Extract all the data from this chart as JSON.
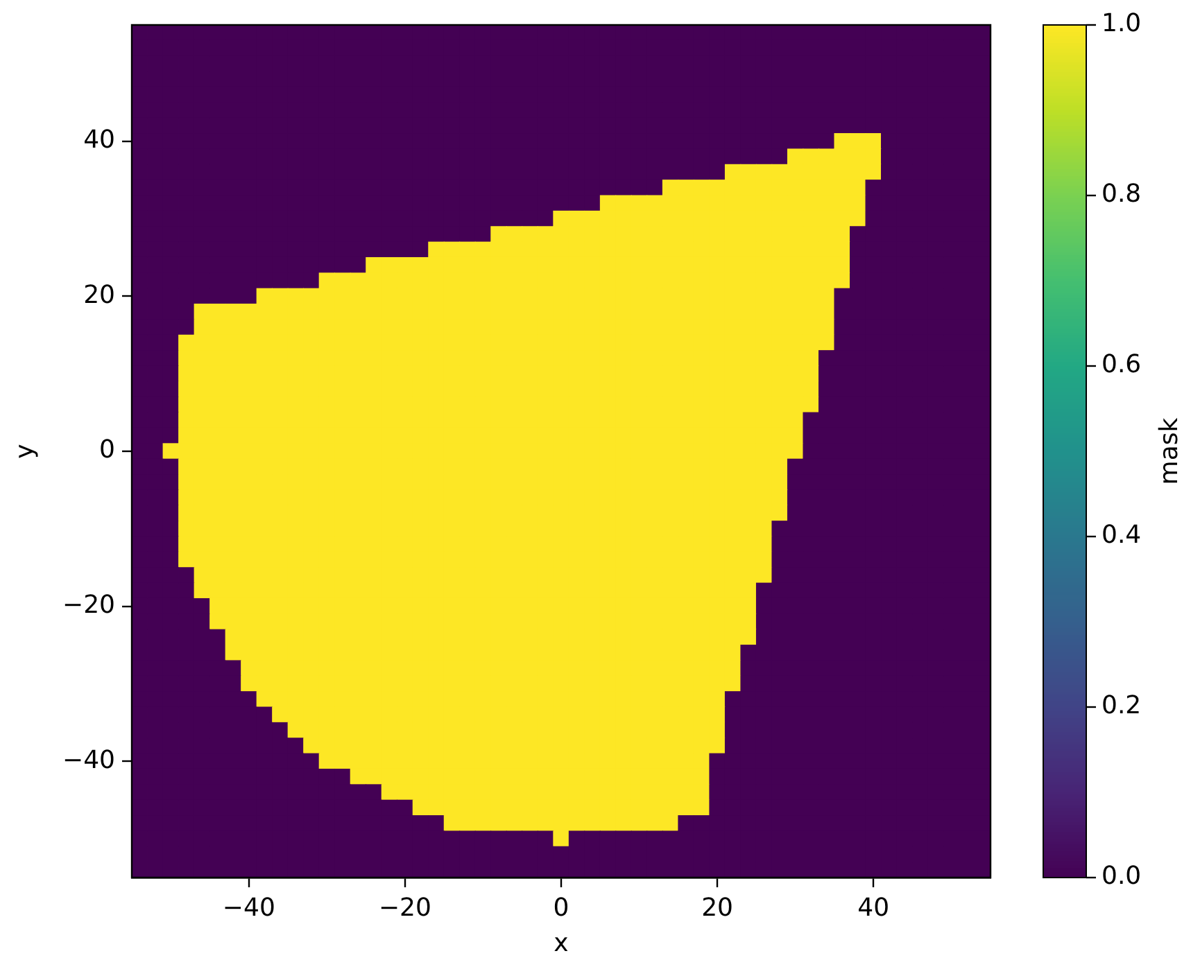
{
  "chart_data": {
    "type": "heatmap",
    "xlabel": "x",
    "ylabel": "y",
    "clabel": "mask",
    "x": [
      -54,
      -52,
      -50,
      -48,
      -46,
      -44,
      -42,
      -40,
      -38,
      -36,
      -34,
      -32,
      -30,
      -28,
      -26,
      -24,
      -22,
      -20,
      -18,
      -16,
      -14,
      -12,
      -10,
      -8,
      -6,
      -4,
      -2,
      0,
      2,
      4,
      6,
      8,
      10,
      12,
      14,
      16,
      18,
      20,
      22,
      24,
      26,
      28,
      30,
      32,
      34,
      36,
      38,
      40,
      42,
      44,
      46,
      48,
      50,
      52,
      54
    ],
    "cells": [
      [
        0,
        0,
        0,
        0,
        0,
        0,
        0,
        0,
        0,
        0,
        0,
        0,
        0,
        0,
        0,
        0,
        0,
        0,
        0,
        0,
        0,
        0,
        0,
        0,
        0,
        0,
        0,
        0,
        0,
        0,
        0,
        0,
        0,
        0,
        0,
        0,
        0,
        0,
        0,
        0,
        0,
        0,
        0,
        0,
        0,
        0,
        0,
        0,
        0,
        0,
        0,
        0,
        0,
        0,
        0
      ],
      [
        0,
        0,
        0,
        0,
        0,
        0,
        0,
        0,
        0,
        0,
        0,
        0,
        0,
        0,
        0,
        0,
        0,
        0,
        0,
        0,
        0,
        0,
        0,
        0,
        0,
        0,
        0,
        0,
        0,
        0,
        0,
        0,
        0,
        0,
        0,
        0,
        0,
        0,
        0,
        0,
        0,
        0,
        0,
        0,
        0,
        0,
        0,
        0,
        0,
        0,
        0,
        0,
        0,
        0,
        0
      ],
      [
        0,
        0,
        0,
        0,
        0,
        0,
        0,
        0,
        0,
        0,
        0,
        0,
        0,
        0,
        0,
        0,
        0,
        0,
        0,
        0,
        0,
        0,
        0,
        0,
        0,
        0,
        0,
        0,
        0,
        0,
        0,
        0,
        0,
        0,
        0,
        0,
        0,
        0,
        0,
        0,
        0,
        0,
        0,
        0,
        0,
        0,
        0,
        0,
        0,
        0,
        0,
        0,
        0,
        0,
        0
      ],
      [
        0,
        0,
        0,
        0,
        0,
        0,
        0,
        0,
        0,
        0,
        0,
        0,
        0,
        0,
        0,
        0,
        0,
        0,
        0,
        0,
        0,
        0,
        0,
        0,
        0,
        0,
        0,
        0,
        0,
        0,
        0,
        0,
        0,
        0,
        0,
        0,
        0,
        0,
        0,
        0,
        0,
        0,
        0,
        0,
        0,
        0,
        0,
        0,
        0,
        0,
        0,
        0,
        0,
        0,
        0
      ],
      [
        0,
        0,
        0,
        0,
        0,
        0,
        0,
        0,
        0,
        0,
        0,
        0,
        0,
        0,
        0,
        0,
        0,
        0,
        0,
        0,
        0,
        0,
        0,
        0,
        0,
        0,
        0,
        0,
        0,
        0,
        0,
        0,
        0,
        0,
        0,
        0,
        0,
        0,
        0,
        0,
        0,
        0,
        0,
        0,
        0,
        0,
        0,
        0,
        0,
        0,
        0,
        0,
        0,
        0,
        0
      ],
      [
        0,
        0,
        0,
        0,
        0,
        0,
        0,
        0,
        0,
        0,
        0,
        0,
        0,
        0,
        0,
        0,
        0,
        0,
        0,
        0,
        0,
        0,
        0,
        0,
        0,
        0,
        0,
        0,
        0,
        0,
        0,
        0,
        0,
        0,
        0,
        0,
        0,
        0,
        0,
        0,
        0,
        0,
        0,
        0,
        0,
        0,
        0,
        0,
        0,
        0,
        0,
        0,
        0,
        0,
        0
      ],
      [
        0,
        0,
        0,
        0,
        0,
        0,
        0,
        0,
        0,
        0,
        0,
        0,
        0,
        0,
        0,
        0,
        0,
        0,
        0,
        0,
        0,
        0,
        0,
        0,
        0,
        0,
        0,
        0,
        0,
        0,
        0,
        0,
        0,
        0,
        0,
        0,
        0,
        0,
        0,
        0,
        0,
        0,
        0,
        0,
        0,
        0,
        0,
        0,
        0,
        0,
        0,
        0,
        0,
        0,
        0
      ],
      [
        0,
        0,
        0,
        0,
        0,
        0,
        0,
        0,
        0,
        0,
        0,
        0,
        0,
        0,
        0,
        0,
        0,
        0,
        0,
        0,
        0,
        0,
        0,
        0,
        0,
        0,
        0,
        0,
        0,
        0,
        0,
        0,
        0,
        0,
        0,
        0,
        0,
        0,
        0,
        0,
        0,
        0,
        0,
        0,
        0,
        1,
        1,
        1,
        0,
        0,
        0,
        0,
        0,
        0,
        0
      ],
      [
        0,
        0,
        0,
        0,
        0,
        0,
        0,
        0,
        0,
        0,
        0,
        0,
        0,
        0,
        0,
        0,
        0,
        0,
        0,
        0,
        0,
        0,
        0,
        0,
        0,
        0,
        0,
        0,
        0,
        0,
        0,
        0,
        0,
        0,
        0,
        0,
        0,
        0,
        0,
        0,
        0,
        0,
        1,
        1,
        1,
        1,
        1,
        1,
        0,
        0,
        0,
        0,
        0,
        0,
        0
      ],
      [
        0,
        0,
        0,
        0,
        0,
        0,
        0,
        0,
        0,
        0,
        0,
        0,
        0,
        0,
        0,
        0,
        0,
        0,
        0,
        0,
        0,
        0,
        0,
        0,
        0,
        0,
        0,
        0,
        0,
        0,
        0,
        0,
        0,
        0,
        0,
        0,
        0,
        0,
        1,
        1,
        1,
        1,
        1,
        1,
        1,
        1,
        1,
        1,
        0,
        0,
        0,
        0,
        0,
        0,
        0
      ],
      [
        0,
        0,
        0,
        0,
        0,
        0,
        0,
        0,
        0,
        0,
        0,
        0,
        0,
        0,
        0,
        0,
        0,
        0,
        0,
        0,
        0,
        0,
        0,
        0,
        0,
        0,
        0,
        0,
        0,
        0,
        0,
        0,
        0,
        0,
        1,
        1,
        1,
        1,
        1,
        1,
        1,
        1,
        1,
        1,
        1,
        1,
        1,
        0,
        0,
        0,
        0,
        0,
        0,
        0,
        0
      ],
      [
        0,
        0,
        0,
        0,
        0,
        0,
        0,
        0,
        0,
        0,
        0,
        0,
        0,
        0,
        0,
        0,
        0,
        0,
        0,
        0,
        0,
        0,
        0,
        0,
        0,
        0,
        0,
        0,
        0,
        0,
        1,
        1,
        1,
        1,
        1,
        1,
        1,
        1,
        1,
        1,
        1,
        1,
        1,
        1,
        1,
        1,
        1,
        0,
        0,
        0,
        0,
        0,
        0,
        0,
        0
      ],
      [
        0,
        0,
        0,
        0,
        0,
        0,
        0,
        0,
        0,
        0,
        0,
        0,
        0,
        0,
        0,
        0,
        0,
        0,
        0,
        0,
        0,
        0,
        0,
        0,
        0,
        0,
        0,
        1,
        1,
        1,
        1,
        1,
        1,
        1,
        1,
        1,
        1,
        1,
        1,
        1,
        1,
        1,
        1,
        1,
        1,
        1,
        1,
        0,
        0,
        0,
        0,
        0,
        0,
        0,
        0
      ],
      [
        0,
        0,
        0,
        0,
        0,
        0,
        0,
        0,
        0,
        0,
        0,
        0,
        0,
        0,
        0,
        0,
        0,
        0,
        0,
        0,
        0,
        0,
        0,
        1,
        1,
        1,
        1,
        1,
        1,
        1,
        1,
        1,
        1,
        1,
        1,
        1,
        1,
        1,
        1,
        1,
        1,
        1,
        1,
        1,
        1,
        1,
        0,
        0,
        0,
        0,
        0,
        0,
        0,
        0,
        0
      ],
      [
        0,
        0,
        0,
        0,
        0,
        0,
        0,
        0,
        0,
        0,
        0,
        0,
        0,
        0,
        0,
        0,
        0,
        0,
        0,
        1,
        1,
        1,
        1,
        1,
        1,
        1,
        1,
        1,
        1,
        1,
        1,
        1,
        1,
        1,
        1,
        1,
        1,
        1,
        1,
        1,
        1,
        1,
        1,
        1,
        1,
        1,
        0,
        0,
        0,
        0,
        0,
        0,
        0,
        0,
        0
      ],
      [
        0,
        0,
        0,
        0,
        0,
        0,
        0,
        0,
        0,
        0,
        0,
        0,
        0,
        0,
        0,
        1,
        1,
        1,
        1,
        1,
        1,
        1,
        1,
        1,
        1,
        1,
        1,
        1,
        1,
        1,
        1,
        1,
        1,
        1,
        1,
        1,
        1,
        1,
        1,
        1,
        1,
        1,
        1,
        1,
        1,
        1,
        0,
        0,
        0,
        0,
        0,
        0,
        0,
        0,
        0
      ],
      [
        0,
        0,
        0,
        0,
        0,
        0,
        0,
        0,
        0,
        0,
        0,
        0,
        1,
        1,
        1,
        1,
        1,
        1,
        1,
        1,
        1,
        1,
        1,
        1,
        1,
        1,
        1,
        1,
        1,
        1,
        1,
        1,
        1,
        1,
        1,
        1,
        1,
        1,
        1,
        1,
        1,
        1,
        1,
        1,
        1,
        1,
        0,
        0,
        0,
        0,
        0,
        0,
        0,
        0,
        0
      ],
      [
        0,
        0,
        0,
        0,
        0,
        0,
        0,
        0,
        1,
        1,
        1,
        1,
        1,
        1,
        1,
        1,
        1,
        1,
        1,
        1,
        1,
        1,
        1,
        1,
        1,
        1,
        1,
        1,
        1,
        1,
        1,
        1,
        1,
        1,
        1,
        1,
        1,
        1,
        1,
        1,
        1,
        1,
        1,
        1,
        1,
        0,
        0,
        0,
        0,
        0,
        0,
        0,
        0,
        0,
        0
      ],
      [
        0,
        0,
        0,
        0,
        1,
        1,
        1,
        1,
        1,
        1,
        1,
        1,
        1,
        1,
        1,
        1,
        1,
        1,
        1,
        1,
        1,
        1,
        1,
        1,
        1,
        1,
        1,
        1,
        1,
        1,
        1,
        1,
        1,
        1,
        1,
        1,
        1,
        1,
        1,
        1,
        1,
        1,
        1,
        1,
        1,
        0,
        0,
        0,
        0,
        0,
        0,
        0,
        0,
        0,
        0
      ],
      [
        0,
        0,
        0,
        0,
        1,
        1,
        1,
        1,
        1,
        1,
        1,
        1,
        1,
        1,
        1,
        1,
        1,
        1,
        1,
        1,
        1,
        1,
        1,
        1,
        1,
        1,
        1,
        1,
        1,
        1,
        1,
        1,
        1,
        1,
        1,
        1,
        1,
        1,
        1,
        1,
        1,
        1,
        1,
        1,
        1,
        0,
        0,
        0,
        0,
        0,
        0,
        0,
        0,
        0,
        0
      ],
      [
        0,
        0,
        0,
        1,
        1,
        1,
        1,
        1,
        1,
        1,
        1,
        1,
        1,
        1,
        1,
        1,
        1,
        1,
        1,
        1,
        1,
        1,
        1,
        1,
        1,
        1,
        1,
        1,
        1,
        1,
        1,
        1,
        1,
        1,
        1,
        1,
        1,
        1,
        1,
        1,
        1,
        1,
        1,
        1,
        1,
        0,
        0,
        0,
        0,
        0,
        0,
        0,
        0,
        0,
        0
      ],
      [
        0,
        0,
        0,
        1,
        1,
        1,
        1,
        1,
        1,
        1,
        1,
        1,
        1,
        1,
        1,
        1,
        1,
        1,
        1,
        1,
        1,
        1,
        1,
        1,
        1,
        1,
        1,
        1,
        1,
        1,
        1,
        1,
        1,
        1,
        1,
        1,
        1,
        1,
        1,
        1,
        1,
        1,
        1,
        1,
        0,
        0,
        0,
        0,
        0,
        0,
        0,
        0,
        0,
        0,
        0
      ],
      [
        0,
        0,
        0,
        1,
        1,
        1,
        1,
        1,
        1,
        1,
        1,
        1,
        1,
        1,
        1,
        1,
        1,
        1,
        1,
        1,
        1,
        1,
        1,
        1,
        1,
        1,
        1,
        1,
        1,
        1,
        1,
        1,
        1,
        1,
        1,
        1,
        1,
        1,
        1,
        1,
        1,
        1,
        1,
        1,
        0,
        0,
        0,
        0,
        0,
        0,
        0,
        0,
        0,
        0,
        0
      ],
      [
        0,
        0,
        0,
        1,
        1,
        1,
        1,
        1,
        1,
        1,
        1,
        1,
        1,
        1,
        1,
        1,
        1,
        1,
        1,
        1,
        1,
        1,
        1,
        1,
        1,
        1,
        1,
        1,
        1,
        1,
        1,
        1,
        1,
        1,
        1,
        1,
        1,
        1,
        1,
        1,
        1,
        1,
        1,
        1,
        0,
        0,
        0,
        0,
        0,
        0,
        0,
        0,
        0,
        0,
        0
      ],
      [
        0,
        0,
        0,
        1,
        1,
        1,
        1,
        1,
        1,
        1,
        1,
        1,
        1,
        1,
        1,
        1,
        1,
        1,
        1,
        1,
        1,
        1,
        1,
        1,
        1,
        1,
        1,
        1,
        1,
        1,
        1,
        1,
        1,
        1,
        1,
        1,
        1,
        1,
        1,
        1,
        1,
        1,
        1,
        1,
        0,
        0,
        0,
        0,
        0,
        0,
        0,
        0,
        0,
        0,
        0
      ],
      [
        0,
        0,
        0,
        1,
        1,
        1,
        1,
        1,
        1,
        1,
        1,
        1,
        1,
        1,
        1,
        1,
        1,
        1,
        1,
        1,
        1,
        1,
        1,
        1,
        1,
        1,
        1,
        1,
        1,
        1,
        1,
        1,
        1,
        1,
        1,
        1,
        1,
        1,
        1,
        1,
        1,
        1,
        1,
        0,
        0,
        0,
        0,
        0,
        0,
        0,
        0,
        0,
        0,
        0,
        0
      ],
      [
        0,
        0,
        0,
        1,
        1,
        1,
        1,
        1,
        1,
        1,
        1,
        1,
        1,
        1,
        1,
        1,
        1,
        1,
        1,
        1,
        1,
        1,
        1,
        1,
        1,
        1,
        1,
        1,
        1,
        1,
        1,
        1,
        1,
        1,
        1,
        1,
        1,
        1,
        1,
        1,
        1,
        1,
        1,
        0,
        0,
        0,
        0,
        0,
        0,
        0,
        0,
        0,
        0,
        0,
        0
      ],
      [
        0,
        0,
        1,
        1,
        1,
        1,
        1,
        1,
        1,
        1,
        1,
        1,
        1,
        1,
        1,
        1,
        1,
        1,
        1,
        1,
        1,
        1,
        1,
        1,
        1,
        1,
        1,
        1,
        1,
        1,
        1,
        1,
        1,
        1,
        1,
        1,
        1,
        1,
        1,
        1,
        1,
        1,
        1,
        0,
        0,
        0,
        0,
        0,
        0,
        0,
        0,
        0,
        0,
        0,
        0
      ],
      [
        0,
        0,
        0,
        1,
        1,
        1,
        1,
        1,
        1,
        1,
        1,
        1,
        1,
        1,
        1,
        1,
        1,
        1,
        1,
        1,
        1,
        1,
        1,
        1,
        1,
        1,
        1,
        1,
        1,
        1,
        1,
        1,
        1,
        1,
        1,
        1,
        1,
        1,
        1,
        1,
        1,
        1,
        0,
        0,
        0,
        0,
        0,
        0,
        0,
        0,
        0,
        0,
        0,
        0,
        0
      ],
      [
        0,
        0,
        0,
        1,
        1,
        1,
        1,
        1,
        1,
        1,
        1,
        1,
        1,
        1,
        1,
        1,
        1,
        1,
        1,
        1,
        1,
        1,
        1,
        1,
        1,
        1,
        1,
        1,
        1,
        1,
        1,
        1,
        1,
        1,
        1,
        1,
        1,
        1,
        1,
        1,
        1,
        1,
        0,
        0,
        0,
        0,
        0,
        0,
        0,
        0,
        0,
        0,
        0,
        0,
        0
      ],
      [
        0,
        0,
        0,
        1,
        1,
        1,
        1,
        1,
        1,
        1,
        1,
        1,
        1,
        1,
        1,
        1,
        1,
        1,
        1,
        1,
        1,
        1,
        1,
        1,
        1,
        1,
        1,
        1,
        1,
        1,
        1,
        1,
        1,
        1,
        1,
        1,
        1,
        1,
        1,
        1,
        1,
        1,
        0,
        0,
        0,
        0,
        0,
        0,
        0,
        0,
        0,
        0,
        0,
        0,
        0
      ],
      [
        0,
        0,
        0,
        1,
        1,
        1,
        1,
        1,
        1,
        1,
        1,
        1,
        1,
        1,
        1,
        1,
        1,
        1,
        1,
        1,
        1,
        1,
        1,
        1,
        1,
        1,
        1,
        1,
        1,
        1,
        1,
        1,
        1,
        1,
        1,
        1,
        1,
        1,
        1,
        1,
        1,
        1,
        0,
        0,
        0,
        0,
        0,
        0,
        0,
        0,
        0,
        0,
        0,
        0,
        0
      ],
      [
        0,
        0,
        0,
        1,
        1,
        1,
        1,
        1,
        1,
        1,
        1,
        1,
        1,
        1,
        1,
        1,
        1,
        1,
        1,
        1,
        1,
        1,
        1,
        1,
        1,
        1,
        1,
        1,
        1,
        1,
        1,
        1,
        1,
        1,
        1,
        1,
        1,
        1,
        1,
        1,
        1,
        0,
        0,
        0,
        0,
        0,
        0,
        0,
        0,
        0,
        0,
        0,
        0,
        0,
        0
      ],
      [
        0,
        0,
        0,
        1,
        1,
        1,
        1,
        1,
        1,
        1,
        1,
        1,
        1,
        1,
        1,
        1,
        1,
        1,
        1,
        1,
        1,
        1,
        1,
        1,
        1,
        1,
        1,
        1,
        1,
        1,
        1,
        1,
        1,
        1,
        1,
        1,
        1,
        1,
        1,
        1,
        1,
        0,
        0,
        0,
        0,
        0,
        0,
        0,
        0,
        0,
        0,
        0,
        0,
        0,
        0
      ],
      [
        0,
        0,
        0,
        1,
        1,
        1,
        1,
        1,
        1,
        1,
        1,
        1,
        1,
        1,
        1,
        1,
        1,
        1,
        1,
        1,
        1,
        1,
        1,
        1,
        1,
        1,
        1,
        1,
        1,
        1,
        1,
        1,
        1,
        1,
        1,
        1,
        1,
        1,
        1,
        1,
        1,
        0,
        0,
        0,
        0,
        0,
        0,
        0,
        0,
        0,
        0,
        0,
        0,
        0,
        0
      ],
      [
        0,
        0,
        0,
        0,
        1,
        1,
        1,
        1,
        1,
        1,
        1,
        1,
        1,
        1,
        1,
        1,
        1,
        1,
        1,
        1,
        1,
        1,
        1,
        1,
        1,
        1,
        1,
        1,
        1,
        1,
        1,
        1,
        1,
        1,
        1,
        1,
        1,
        1,
        1,
        1,
        1,
        0,
        0,
        0,
        0,
        0,
        0,
        0,
        0,
        0,
        0,
        0,
        0,
        0,
        0
      ],
      [
        0,
        0,
        0,
        0,
        1,
        1,
        1,
        1,
        1,
        1,
        1,
        1,
        1,
        1,
        1,
        1,
        1,
        1,
        1,
        1,
        1,
        1,
        1,
        1,
        1,
        1,
        1,
        1,
        1,
        1,
        1,
        1,
        1,
        1,
        1,
        1,
        1,
        1,
        1,
        1,
        0,
        0,
        0,
        0,
        0,
        0,
        0,
        0,
        0,
        0,
        0,
        0,
        0,
        0,
        0
      ],
      [
        0,
        0,
        0,
        0,
        0,
        1,
        1,
        1,
        1,
        1,
        1,
        1,
        1,
        1,
        1,
        1,
        1,
        1,
        1,
        1,
        1,
        1,
        1,
        1,
        1,
        1,
        1,
        1,
        1,
        1,
        1,
        1,
        1,
        1,
        1,
        1,
        1,
        1,
        1,
        1,
        0,
        0,
        0,
        0,
        0,
        0,
        0,
        0,
        0,
        0,
        0,
        0,
        0,
        0,
        0
      ],
      [
        0,
        0,
        0,
        0,
        0,
        1,
        1,
        1,
        1,
        1,
        1,
        1,
        1,
        1,
        1,
        1,
        1,
        1,
        1,
        1,
        1,
        1,
        1,
        1,
        1,
        1,
        1,
        1,
        1,
        1,
        1,
        1,
        1,
        1,
        1,
        1,
        1,
        1,
        1,
        1,
        0,
        0,
        0,
        0,
        0,
        0,
        0,
        0,
        0,
        0,
        0,
        0,
        0,
        0,
        0
      ],
      [
        0,
        0,
        0,
        0,
        0,
        0,
        1,
        1,
        1,
        1,
        1,
        1,
        1,
        1,
        1,
        1,
        1,
        1,
        1,
        1,
        1,
        1,
        1,
        1,
        1,
        1,
        1,
        1,
        1,
        1,
        1,
        1,
        1,
        1,
        1,
        1,
        1,
        1,
        1,
        1,
        0,
        0,
        0,
        0,
        0,
        0,
        0,
        0,
        0,
        0,
        0,
        0,
        0,
        0,
        0
      ],
      [
        0,
        0,
        0,
        0,
        0,
        0,
        1,
        1,
        1,
        1,
        1,
        1,
        1,
        1,
        1,
        1,
        1,
        1,
        1,
        1,
        1,
        1,
        1,
        1,
        1,
        1,
        1,
        1,
        1,
        1,
        1,
        1,
        1,
        1,
        1,
        1,
        1,
        1,
        1,
        0,
        0,
        0,
        0,
        0,
        0,
        0,
        0,
        0,
        0,
        0,
        0,
        0,
        0,
        0,
        0
      ],
      [
        0,
        0,
        0,
        0,
        0,
        0,
        0,
        1,
        1,
        1,
        1,
        1,
        1,
        1,
        1,
        1,
        1,
        1,
        1,
        1,
        1,
        1,
        1,
        1,
        1,
        1,
        1,
        1,
        1,
        1,
        1,
        1,
        1,
        1,
        1,
        1,
        1,
        1,
        1,
        0,
        0,
        0,
        0,
        0,
        0,
        0,
        0,
        0,
        0,
        0,
        0,
        0,
        0,
        0,
        0
      ],
      [
        0,
        0,
        0,
        0,
        0,
        0,
        0,
        1,
        1,
        1,
        1,
        1,
        1,
        1,
        1,
        1,
        1,
        1,
        1,
        1,
        1,
        1,
        1,
        1,
        1,
        1,
        1,
        1,
        1,
        1,
        1,
        1,
        1,
        1,
        1,
        1,
        1,
        1,
        1,
        0,
        0,
        0,
        0,
        0,
        0,
        0,
        0,
        0,
        0,
        0,
        0,
        0,
        0,
        0,
        0
      ],
      [
        0,
        0,
        0,
        0,
        0,
        0,
        0,
        0,
        1,
        1,
        1,
        1,
        1,
        1,
        1,
        1,
        1,
        1,
        1,
        1,
        1,
        1,
        1,
        1,
        1,
        1,
        1,
        1,
        1,
        1,
        1,
        1,
        1,
        1,
        1,
        1,
        1,
        1,
        0,
        0,
        0,
        0,
        0,
        0,
        0,
        0,
        0,
        0,
        0,
        0,
        0,
        0,
        0,
        0,
        0
      ],
      [
        0,
        0,
        0,
        0,
        0,
        0,
        0,
        0,
        0,
        1,
        1,
        1,
        1,
        1,
        1,
        1,
        1,
        1,
        1,
        1,
        1,
        1,
        1,
        1,
        1,
        1,
        1,
        1,
        1,
        1,
        1,
        1,
        1,
        1,
        1,
        1,
        1,
        1,
        0,
        0,
        0,
        0,
        0,
        0,
        0,
        0,
        0,
        0,
        0,
        0,
        0,
        0,
        0,
        0,
        0
      ],
      [
        0,
        0,
        0,
        0,
        0,
        0,
        0,
        0,
        0,
        0,
        1,
        1,
        1,
        1,
        1,
        1,
        1,
        1,
        1,
        1,
        1,
        1,
        1,
        1,
        1,
        1,
        1,
        1,
        1,
        1,
        1,
        1,
        1,
        1,
        1,
        1,
        1,
        1,
        0,
        0,
        0,
        0,
        0,
        0,
        0,
        0,
        0,
        0,
        0,
        0,
        0,
        0,
        0,
        0,
        0
      ],
      [
        0,
        0,
        0,
        0,
        0,
        0,
        0,
        0,
        0,
        0,
        0,
        1,
        1,
        1,
        1,
        1,
        1,
        1,
        1,
        1,
        1,
        1,
        1,
        1,
        1,
        1,
        1,
        1,
        1,
        1,
        1,
        1,
        1,
        1,
        1,
        1,
        1,
        1,
        0,
        0,
        0,
        0,
        0,
        0,
        0,
        0,
        0,
        0,
        0,
        0,
        0,
        0,
        0,
        0,
        0
      ],
      [
        0,
        0,
        0,
        0,
        0,
        0,
        0,
        0,
        0,
        0,
        0,
        0,
        1,
        1,
        1,
        1,
        1,
        1,
        1,
        1,
        1,
        1,
        1,
        1,
        1,
        1,
        1,
        1,
        1,
        1,
        1,
        1,
        1,
        1,
        1,
        1,
        1,
        0,
        0,
        0,
        0,
        0,
        0,
        0,
        0,
        0,
        0,
        0,
        0,
        0,
        0,
        0,
        0,
        0,
        0
      ],
      [
        0,
        0,
        0,
        0,
        0,
        0,
        0,
        0,
        0,
        0,
        0,
        0,
        0,
        0,
        1,
        1,
        1,
        1,
        1,
        1,
        1,
        1,
        1,
        1,
        1,
        1,
        1,
        1,
        1,
        1,
        1,
        1,
        1,
        1,
        1,
        1,
        1,
        0,
        0,
        0,
        0,
        0,
        0,
        0,
        0,
        0,
        0,
        0,
        0,
        0,
        0,
        0,
        0,
        0,
        0
      ],
      [
        0,
        0,
        0,
        0,
        0,
        0,
        0,
        0,
        0,
        0,
        0,
        0,
        0,
        0,
        0,
        0,
        1,
        1,
        1,
        1,
        1,
        1,
        1,
        1,
        1,
        1,
        1,
        1,
        1,
        1,
        1,
        1,
        1,
        1,
        1,
        1,
        1,
        0,
        0,
        0,
        0,
        0,
        0,
        0,
        0,
        0,
        0,
        0,
        0,
        0,
        0,
        0,
        0,
        0,
        0
      ],
      [
        0,
        0,
        0,
        0,
        0,
        0,
        0,
        0,
        0,
        0,
        0,
        0,
        0,
        0,
        0,
        0,
        0,
        0,
        1,
        1,
        1,
        1,
        1,
        1,
        1,
        1,
        1,
        1,
        1,
        1,
        1,
        1,
        1,
        1,
        1,
        1,
        1,
        0,
        0,
        0,
        0,
        0,
        0,
        0,
        0,
        0,
        0,
        0,
        0,
        0,
        0,
        0,
        0,
        0,
        0
      ],
      [
        0,
        0,
        0,
        0,
        0,
        0,
        0,
        0,
        0,
        0,
        0,
        0,
        0,
        0,
        0,
        0,
        0,
        0,
        0,
        0,
        1,
        1,
        1,
        1,
        1,
        1,
        1,
        1,
        1,
        1,
        1,
        1,
        1,
        1,
        1,
        0,
        0,
        0,
        0,
        0,
        0,
        0,
        0,
        0,
        0,
        0,
        0,
        0,
        0,
        0,
        0,
        0,
        0,
        0,
        0
      ],
      [
        0,
        0,
        0,
        0,
        0,
        0,
        0,
        0,
        0,
        0,
        0,
        0,
        0,
        0,
        0,
        0,
        0,
        0,
        0,
        0,
        0,
        0,
        0,
        0,
        0,
        0,
        0,
        1,
        0,
        0,
        0,
        0,
        0,
        0,
        0,
        0,
        0,
        0,
        0,
        0,
        0,
        0,
        0,
        0,
        0,
        0,
        0,
        0,
        0,
        0,
        0,
        0,
        0,
        0,
        0
      ],
      [
        0,
        0,
        0,
        0,
        0,
        0,
        0,
        0,
        0,
        0,
        0,
        0,
        0,
        0,
        0,
        0,
        0,
        0,
        0,
        0,
        0,
        0,
        0,
        0,
        0,
        0,
        0,
        0,
        0,
        0,
        0,
        0,
        0,
        0,
        0,
        0,
        0,
        0,
        0,
        0,
        0,
        0,
        0,
        0,
        0,
        0,
        0,
        0,
        0,
        0,
        0,
        0,
        0,
        0,
        0
      ],
      [
        0,
        0,
        0,
        0,
        0,
        0,
        0,
        0,
        0,
        0,
        0,
        0,
        0,
        0,
        0,
        0,
        0,
        0,
        0,
        0,
        0,
        0,
        0,
        0,
        0,
        0,
        0,
        0,
        0,
        0,
        0,
        0,
        0,
        0,
        0,
        0,
        0,
        0,
        0,
        0,
        0,
        0,
        0,
        0,
        0,
        0,
        0,
        0,
        0,
        0,
        0,
        0,
        0,
        0,
        0
      ]
    ],
    "xlim": [
      -55,
      55
    ],
    "xticks": [
      -40,
      -20,
      0,
      20,
      40
    ],
    "ylim": [
      -55,
      55
    ],
    "yticks": [
      -40,
      -20,
      0,
      20,
      40
    ],
    "clim": [
      0,
      1
    ],
    "cticks": [
      {
        "value": 0,
        "label": "0.0"
      },
      0.2,
      0.4,
      0.6,
      0.8,
      {
        "value": 1,
        "label": "1.0"
      }
    ]
  }
}
